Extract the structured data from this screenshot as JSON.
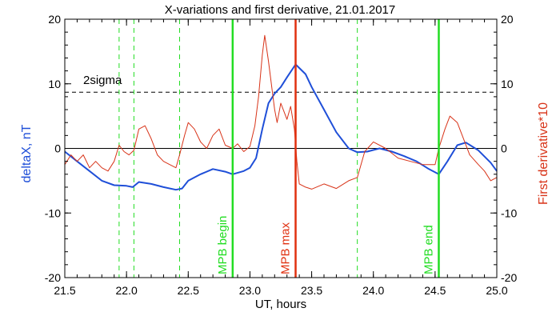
{
  "chart_data": {
    "type": "line",
    "title": "X-variations and first derivative, 21.01.2017",
    "xlabel": "UT, hours",
    "ylabel_left": "deltaX, nT",
    "ylabel_right": "First derivative*10",
    "xlim": [
      21.5,
      25.0
    ],
    "ylim": [
      -20,
      20
    ],
    "x_ticks": [
      "21.5",
      "22.0",
      "22.5",
      "23.0",
      "23.5",
      "24.0",
      "24.5",
      "25.0"
    ],
    "y_ticks_left": [
      "-20",
      "-10",
      "0",
      "10",
      "20"
    ],
    "y_ticks_right": [
      "-20",
      "-10",
      "0",
      "10",
      "20"
    ],
    "threshold": {
      "label": "2sigma",
      "value": 8.7
    },
    "vlines_dashed": [
      21.94,
      22.06,
      22.43,
      23.87
    ],
    "vlines_markers": [
      {
        "x": 22.86,
        "label": "MPB begin",
        "color": "#22dd22"
      },
      {
        "x": 23.37,
        "label": "MPB max",
        "color": "#e03010"
      },
      {
        "x": 24.53,
        "label": "MPB end",
        "color": "#22dd22"
      }
    ],
    "series": [
      {
        "color": "#1f4fd8",
        "x": [
          21.5,
          21.6,
          21.7,
          21.8,
          21.9,
          22.0,
          22.05,
          22.1,
          22.2,
          22.3,
          22.4,
          22.45,
          22.5,
          22.6,
          22.7,
          22.8,
          22.86,
          22.95,
          23.0,
          23.05,
          23.1,
          23.15,
          23.2,
          23.25,
          23.3,
          23.37,
          23.45,
          23.5,
          23.6,
          23.7,
          23.8,
          23.87,
          23.95,
          24.05,
          24.15,
          24.25,
          24.35,
          24.45,
          24.53,
          24.6,
          24.68,
          24.75,
          24.85,
          24.95,
          25.0
        ],
        "values": [
          -0.5,
          -2.0,
          -3.5,
          -5.0,
          -5.7,
          -5.8,
          -6.0,
          -5.2,
          -5.5,
          -6.0,
          -6.4,
          -6.2,
          -5.0,
          -4.0,
          -3.2,
          -3.6,
          -4.0,
          -3.5,
          -3.0,
          -1.5,
          3.0,
          7.0,
          8.5,
          9.5,
          11.0,
          13.0,
          11.5,
          9.5,
          6.0,
          2.5,
          0.0,
          -0.6,
          -0.5,
          0.0,
          -0.5,
          -1.2,
          -2.0,
          -3.2,
          -4.0,
          -2.0,
          0.5,
          0.9,
          -0.3,
          -2.2,
          -3.5
        ]
      },
      {
        "color": "#d83318",
        "x": [
          21.5,
          21.55,
          21.6,
          21.65,
          21.7,
          21.75,
          21.8,
          21.85,
          21.9,
          21.94,
          21.98,
          22.02,
          22.06,
          22.1,
          22.15,
          22.2,
          22.25,
          22.3,
          22.35,
          22.4,
          22.43,
          22.47,
          22.5,
          22.55,
          22.6,
          22.65,
          22.7,
          22.75,
          22.8,
          22.86,
          22.9,
          22.95,
          23.0,
          23.04,
          23.07,
          23.1,
          23.12,
          23.15,
          23.18,
          23.2,
          23.22,
          23.25,
          23.28,
          23.3,
          23.33,
          23.36,
          23.38,
          23.4,
          23.45,
          23.5,
          23.6,
          23.7,
          23.8,
          23.87,
          23.93,
          24.0,
          24.1,
          24.2,
          24.3,
          24.4,
          24.5,
          24.53,
          24.58,
          24.62,
          24.68,
          24.72,
          24.78,
          24.85,
          24.9,
          24.95,
          25.0
        ],
        "values": [
          -2.5,
          -1.0,
          -2.0,
          -1.0,
          -3.0,
          -2.0,
          -3.0,
          -3.5,
          -2.0,
          0.5,
          -0.5,
          -1.0,
          -0.3,
          3.0,
          3.5,
          1.5,
          -1.0,
          -2.0,
          -2.5,
          -3.0,
          -1.0,
          2.0,
          4.0,
          3.0,
          1.0,
          0.0,
          2.0,
          3.0,
          0.5,
          0.0,
          0.7,
          -0.5,
          0.3,
          3.5,
          8.0,
          14.5,
          17.5,
          13.5,
          9.0,
          6.0,
          4.0,
          7.0,
          5.5,
          4.5,
          6.5,
          3.0,
          -2.0,
          -5.5,
          -6.0,
          -6.3,
          -5.5,
          -6.2,
          -5.0,
          -4.5,
          -0.5,
          1.0,
          0.0,
          -1.5,
          -2.0,
          -2.5,
          -2.5,
          0.0,
          3.0,
          5.0,
          4.0,
          2.0,
          -1.0,
          -2.5,
          -3.5,
          -5.0,
          -4.5
        ]
      }
    ]
  }
}
